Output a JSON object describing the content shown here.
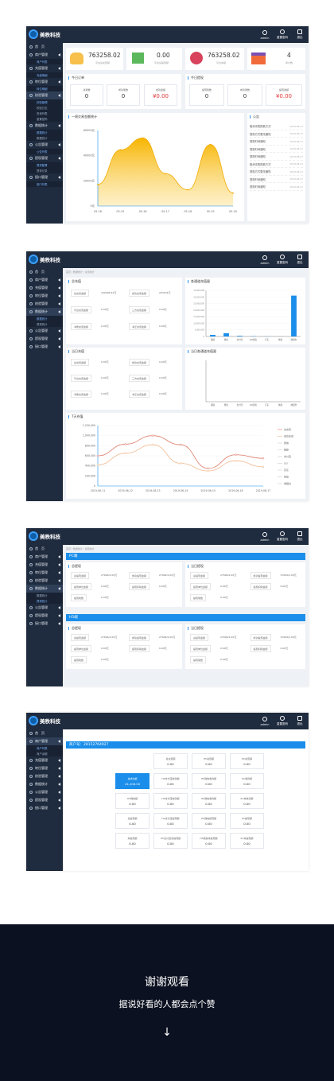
{
  "logo": {
    "text": "美秩科技"
  },
  "topbar": {
    "admin": "admin",
    "pwd": "重置密码",
    "logout": "退出"
  },
  "s1": {
    "nav": [
      {
        "label": "首　页"
      },
      {
        "label": "商户管理",
        "sub": "商户列表"
      },
      {
        "label": "充值管理",
        "sub": "充值明细"
      },
      {
        "label": "转位管理",
        "sub": "转位明细"
      },
      {
        "label": "校验管理",
        "subs": [
          "校验管理",
          "校验日志",
          "查询列表",
          "重置密码"
        ]
      },
      {
        "label": "数据统计",
        "subs": [
          "数据统计",
          "数据统计"
        ]
      },
      {
        "label": "公告管理",
        "sub": "公告列表"
      },
      {
        "label": "提现管理",
        "subs": [
          "提现配置",
          "提现记录"
        ]
      },
      {
        "label": "接口管理",
        "sub": "接口列表"
      }
    ],
    "stats": [
      {
        "value": "763258.02",
        "label": "平台总充值额"
      },
      {
        "value": "0.00",
        "label": "平台总提现额"
      },
      {
        "value": "763258.02",
        "label": "平台余额"
      },
      {
        "value": "4",
        "label": "商户数"
      }
    ],
    "today_order": {
      "title": "今日订单",
      "items": [
        {
          "label": "总笔数",
          "value": "0"
        },
        {
          "label": "成功笔数",
          "value": "0"
        },
        {
          "label": "成功金额",
          "value": "¥0.00"
        }
      ]
    },
    "today_withdraw": {
      "title": "今日提现",
      "items": [
        {
          "label": "提现笔数",
          "value": "0"
        },
        {
          "label": "成功笔数",
          "value": "0"
        },
        {
          "label": "提现金额",
          "value": "¥0.00"
        }
      ]
    },
    "chart_title": "一周交易金额统计",
    "notice_title": "公告",
    "notices": [
      {
        "text": "取消请笔提款方式",
        "date": "2019-06-17"
      },
      {
        "text": "提现方式更改通知",
        "date": "2019-06-17"
      },
      {
        "text": "提现时间通知",
        "date": "2019-06-17"
      },
      {
        "text": "提现时间通知",
        "date": "2019-06-17"
      },
      {
        "text": "提现时间通知",
        "date": "2019-06-17"
      },
      {
        "text": "取消请笔提款方式",
        "date": "2019-06-17"
      },
      {
        "text": "提现方式更改通知",
        "date": "2019-06-17"
      },
      {
        "text": "提现时间通知",
        "date": "2019-06-17"
      },
      {
        "text": "提现时间通知",
        "date": "2019-06-17"
      }
    ]
  },
  "s2": {
    "crumb": "首页 / 数据统计 / 充值统计",
    "nav": [
      {
        "label": "首　页"
      },
      {
        "label": "商户管理"
      },
      {
        "label": "充值管理"
      },
      {
        "label": "转位管理"
      },
      {
        "label": "校验管理"
      },
      {
        "label": "数据统计",
        "subs": [
          "数据统计",
          "提现统计"
        ]
      },
      {
        "label": "公告管理"
      },
      {
        "label": "提现管理"
      },
      {
        "label": "接口管理"
      }
    ],
    "total_title": "总充值",
    "total_rows": [
      [
        {
          "label": "总充值金额",
          "value": "160296.92元"
        },
        {
          "label": "成功充值金额",
          "value": "203124元"
        }
      ],
      [
        {
          "label": "平台充值金额",
          "value": "0.00元"
        },
        {
          "label": "三方充值金额",
          "value": "0.00元"
        }
      ],
      [
        {
          "label": "冲账充值金额",
          "value": "0.00元"
        },
        {
          "label": "冲正充值金额",
          "value": "0.00元"
        }
      ]
    ],
    "channel_title": "各通道充值量",
    "today_title": "当日充值",
    "today_rows": [
      [
        {
          "label": "总充值金额",
          "value": "0.00元"
        },
        {
          "label": "成功充值金额",
          "value": "0.00元"
        }
      ],
      [
        {
          "label": "平台充值金额",
          "value": "0.00元"
        },
        {
          "label": "三方充值金额",
          "value": "0.00元"
        }
      ],
      [
        {
          "label": "冲账充值金额",
          "value": "0.00元"
        },
        {
          "label": "冲正充值金额",
          "value": "0.00元"
        }
      ]
    ],
    "today_channel_title": "当日各通道充值量",
    "week_title": "7天充值"
  },
  "s3": {
    "crumb": "首页 / 数据统计 / 提现统计",
    "nav": [
      {
        "label": "首　页"
      },
      {
        "label": "商户管理"
      },
      {
        "label": "充值管理"
      },
      {
        "label": "转位管理"
      },
      {
        "label": "校验管理"
      },
      {
        "label": "数据统计",
        "subs": [
          "数据统计",
          "提现统计"
        ]
      },
      {
        "label": "公告管理"
      },
      {
        "label": "提现管理"
      },
      {
        "label": "接口管理"
      }
    ],
    "pc": "PC端",
    "h5": "H5端",
    "total_title": "总提现",
    "today_title": "当日提现",
    "rows_total": [
      [
        {
          "label": "总提现金额",
          "value": "27694/2.00元"
        },
        {
          "label": "成功提现金额",
          "value": "27694/2.00元"
        }
      ],
      [
        {
          "label": "提现单位金额",
          "value": "0.00元"
        },
        {
          "label": "提现扣除金额",
          "value": "0.00元"
        }
      ],
      [
        {
          "label": "提现笔数",
          "value": "0.00元"
        }
      ]
    ],
    "rows_today": [
      [
        {
          "label": "总提现金额",
          "value": "27694/2.00元"
        },
        {
          "label": "成功提现金额",
          "value": "27694/2.00元"
        }
      ],
      [
        {
          "label": "提现单位金额",
          "value": "0.00元"
        },
        {
          "label": "提现扣除金额",
          "value": "0.00元"
        }
      ],
      [
        {
          "label": "提现笔数",
          "value": "0.00元"
        }
      ]
    ]
  },
  "s4": {
    "nav": [
      {
        "label": "首　页"
      },
      {
        "label": "商户管理",
        "subs": [
          "商户列表",
          "商户余额"
        ]
      },
      {
        "label": "充值管理"
      },
      {
        "label": "转位管理"
      },
      {
        "label": "校验管理"
      },
      {
        "label": "数据统计"
      },
      {
        "label": "公告管理"
      },
      {
        "label": "提现管理"
      },
      {
        "label": "接口管理"
      }
    ],
    "account": "商户号：28152764927",
    "boxes": [
      {
        "label": "总充值额",
        "value": "0.00"
      },
      {
        "label": "H5充值额",
        "value": "0.00"
      },
      {
        "label": "PC充值额",
        "value": "0.00"
      },
      {
        "label": "总成交额",
        "value": "24,208.00",
        "selected": true
      },
      {
        "label": "H5支付宝收款额",
        "value": "0.00"
      },
      {
        "label": "H5微信收款额",
        "value": "0.00"
      },
      {
        "label": "PC收款额",
        "value": "0.00"
      },
      {
        "label": "H5微信额",
        "value": "0.00"
      },
      {
        "label": "H5支付宝收款额",
        "value": "0.00"
      },
      {
        "label": "H5微信收款额",
        "value": "0.00"
      },
      {
        "label": "PC未收款额",
        "value": "0.00"
      },
      {
        "label": "总提现额",
        "value": "0.00"
      },
      {
        "label": "H5支付宝提现额",
        "value": "0.00"
      },
      {
        "label": "H5微信提现额",
        "value": "0.00"
      },
      {
        "label": "PC提现额",
        "value": "0.00"
      },
      {
        "label": "未提现额",
        "value": "0.00"
      },
      {
        "label": "H5支付宝未提现额",
        "value": "0.00"
      },
      {
        "label": "H5微信未提现额",
        "value": "0.00"
      },
      {
        "label": "PC未提现额",
        "value": "0.00"
      }
    ]
  },
  "outro": {
    "title": "谢谢观看",
    "subtitle": "据说好看的人都会点个赞",
    "arrow": "↓"
  },
  "chart_data": [
    {
      "type": "area",
      "title": "",
      "x": [
        "05-18",
        "05-19",
        "05-16",
        "05-17",
        "05-18",
        "05-19",
        "05-20"
      ],
      "values": [
        20000,
        52000,
        63000,
        30000,
        15000,
        57000,
        12000
      ],
      "ylabels": [
        "60000元",
        "40000元",
        "20000元",
        "0元"
      ],
      "ylim": [
        0,
        70000
      ]
    },
    {
      "type": "bar",
      "title": "",
      "categories": [
        "银联",
        "微信",
        "支付宝",
        "QQ钱包",
        "京东",
        "快捷",
        "收银台"
      ],
      "values": [
        1200000,
        2500000,
        500000,
        200000,
        100000,
        50000,
        31000000
      ],
      "ylim": [
        0,
        35000000
      ],
      "ylabels": [
        "35,000,000",
        "30,000,000",
        "25,000,000",
        "20,000,000",
        "15,000,000",
        "10,000,000",
        "5,000,000",
        "0"
      ]
    },
    {
      "type": "bar",
      "title": "",
      "categories": [
        "银联",
        "微信",
        "支付宝",
        "QQ钱包",
        "京东",
        "快捷",
        "收银台"
      ],
      "values": [
        0,
        0,
        0,
        0,
        0,
        0,
        0
      ],
      "ylim": [
        0,
        1
      ]
    },
    {
      "type": "line",
      "title": "",
      "x": [
        "2019-06-11",
        "2019-06-12",
        "2019-06-13",
        "2019-06-14",
        "2019-06-15",
        "2019-06-16",
        "2019-06-17"
      ],
      "yticks": [
        "1,200,000",
        "1,000,000",
        "800,000",
        "600,000",
        "400,000",
        "200,000",
        "0"
      ],
      "ylim": [
        0,
        1200000
      ],
      "series": [
        {
          "name": "总充值",
          "values": [
            600000,
            830000,
            1000000,
            820000,
            350000,
            620000,
            550000
          ]
        },
        {
          "name": "成功充值",
          "values": [
            420000,
            650000,
            820000,
            450000,
            300000,
            500000,
            380000
          ]
        }
      ],
      "legend": [
        "总充值",
        "成功充值",
        "微信",
        "银联",
        "支付宝",
        "QQ",
        "京东",
        "快捷",
        "收银台"
      ],
      "colors": [
        "#e07b6a",
        "#f2b98e"
      ]
    }
  ]
}
